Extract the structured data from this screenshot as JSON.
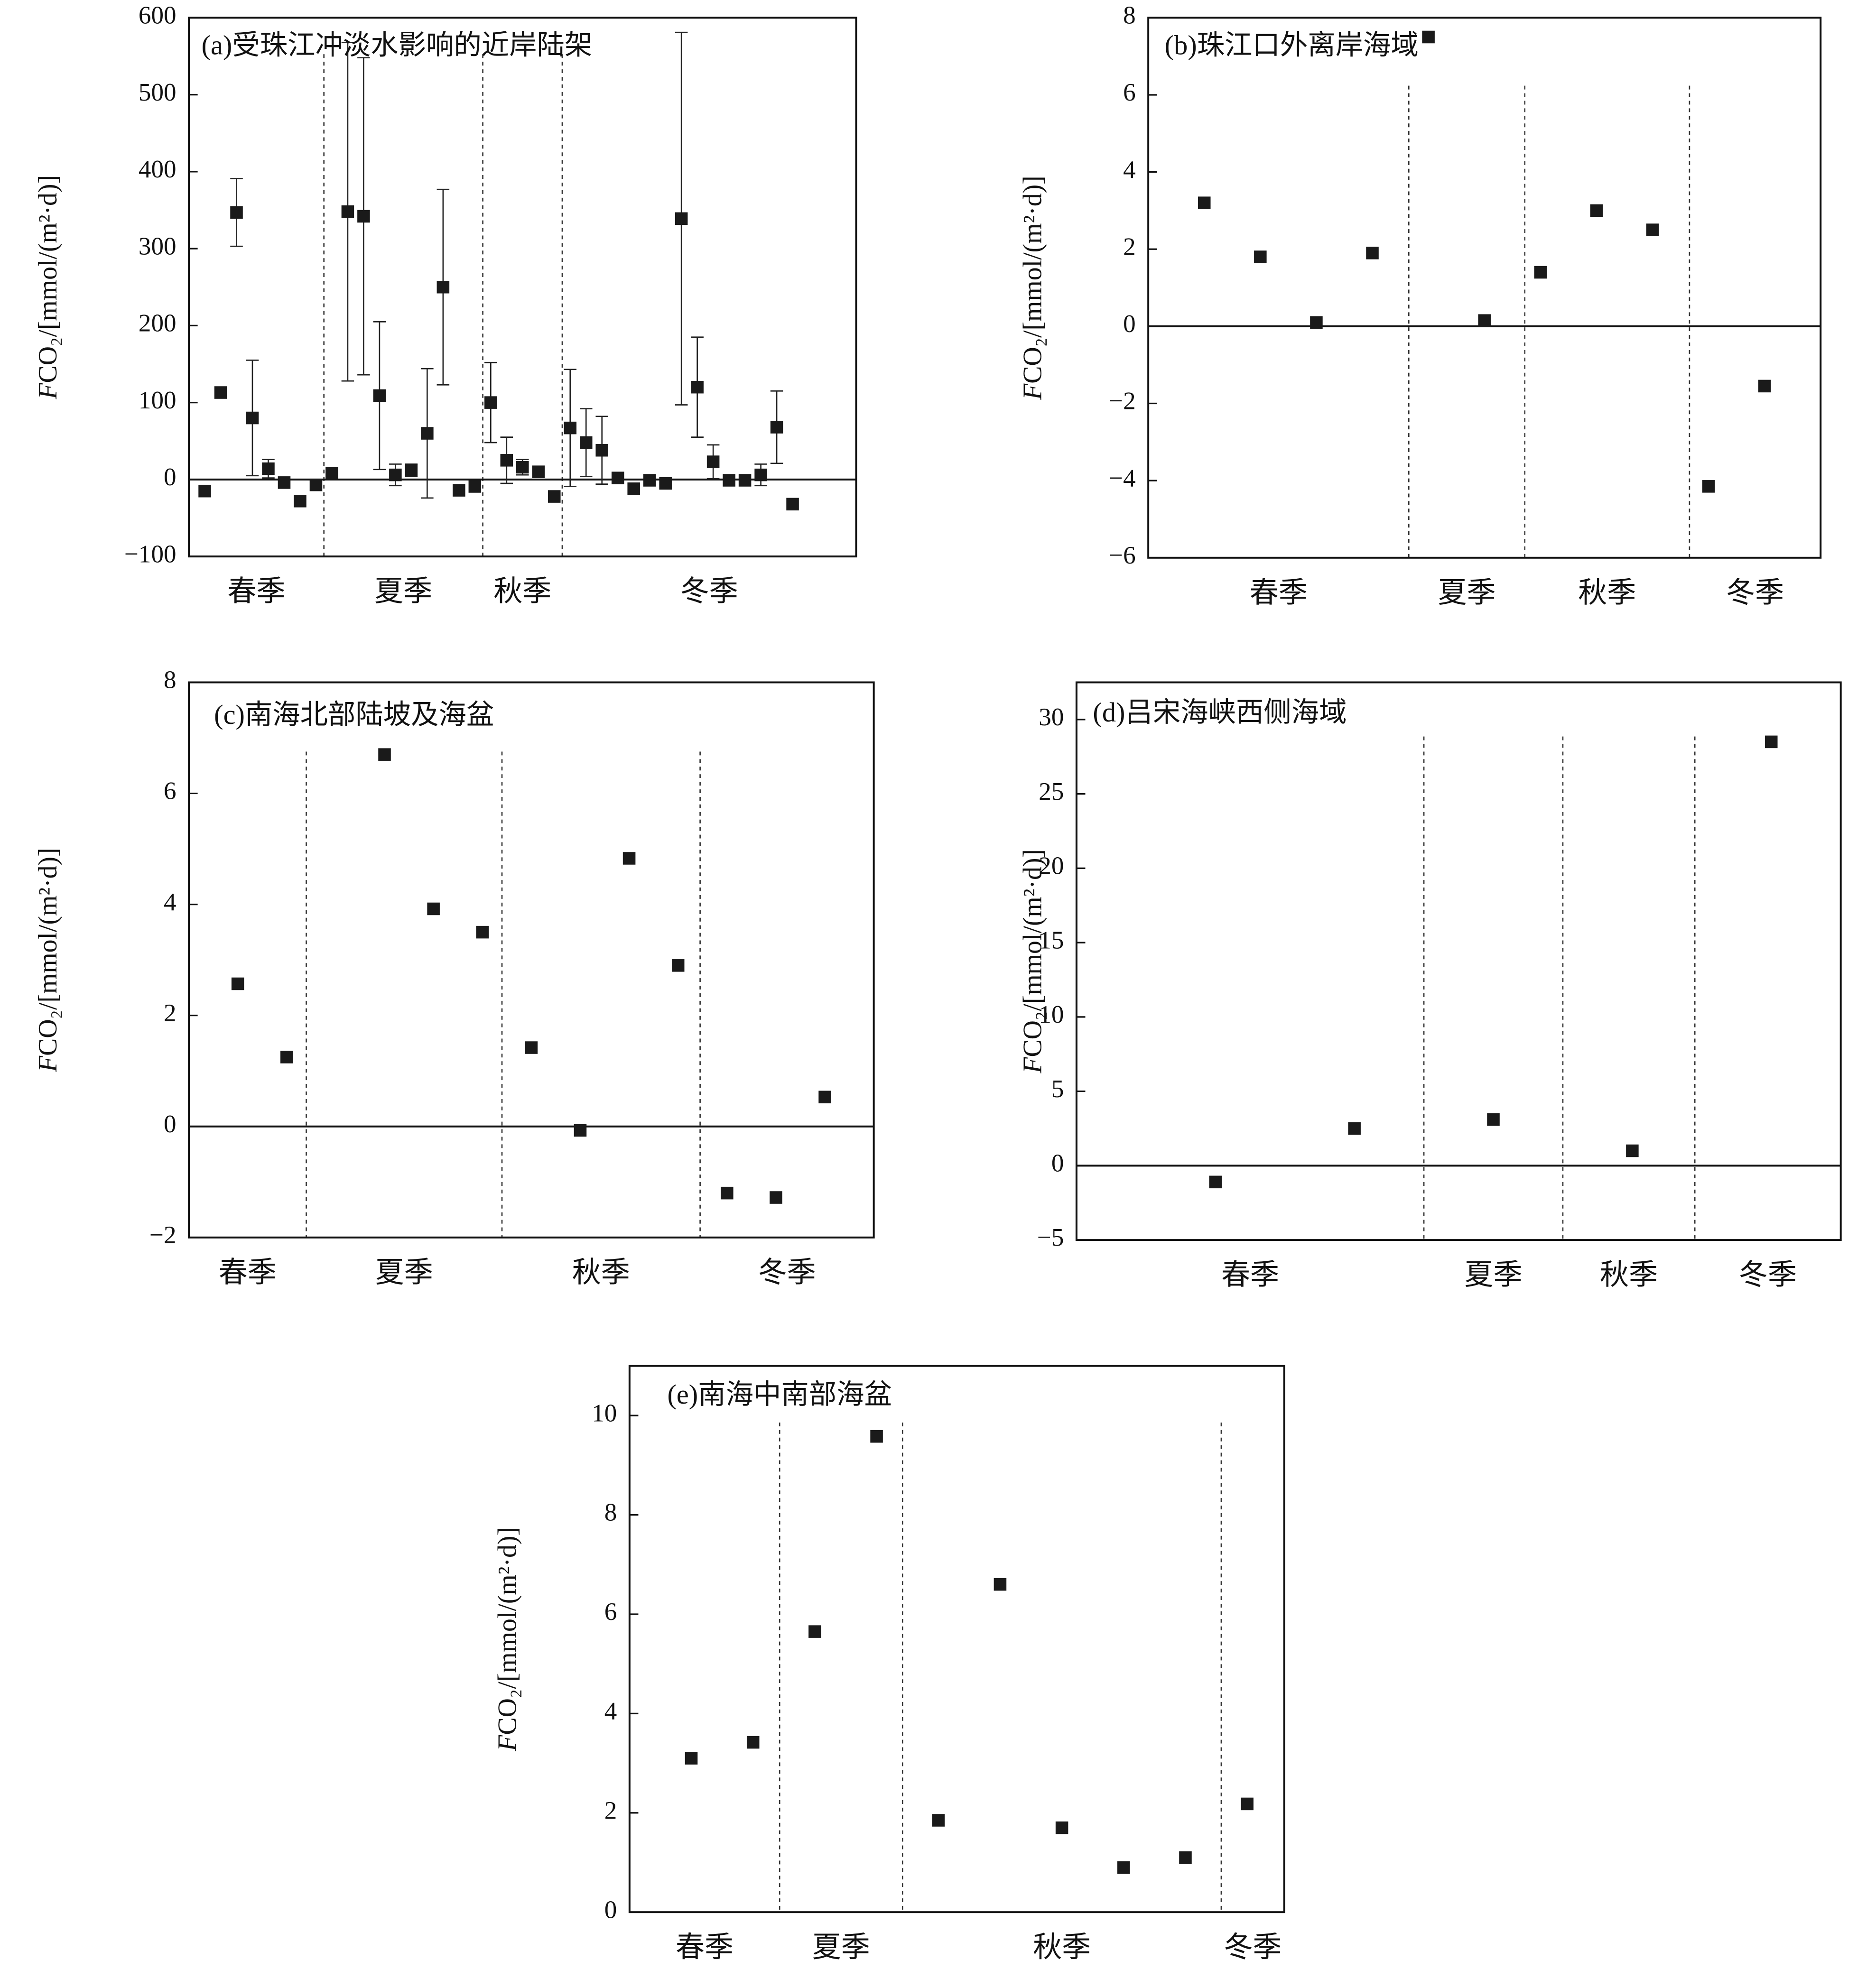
{
  "chart_data": [
    {
      "type": "scatter",
      "title": "(a)受珠江冲淡水影响的近岸陆架",
      "ylabel": {
        "italic": "F",
        "rest": "CO₂/[mmol/(m²·d)]"
      },
      "categories": [
        "春季",
        "夏季",
        "秋季",
        "冬季"
      ],
      "dividers": [
        7.5,
        17.5,
        22.5
      ],
      "x": [
        0,
        1,
        2,
        3,
        4,
        5,
        6,
        7,
        8,
        9,
        10,
        11,
        12,
        13,
        14,
        15,
        16,
        17,
        18,
        19,
        20,
        21,
        22,
        23,
        24,
        25,
        26,
        27,
        28,
        29,
        30,
        31,
        32,
        33,
        34,
        35,
        36,
        37
      ],
      "values": [
        -15,
        113,
        347,
        80,
        14,
        -4,
        -28,
        -7,
        8,
        348,
        342,
        109,
        6,
        12,
        60,
        250,
        -14,
        -9,
        100,
        25,
        16,
        10,
        -22,
        67,
        48,
        38,
        2,
        -12,
        -1,
        -5,
        339,
        120,
        23,
        -1,
        -1,
        6,
        68,
        -32
      ],
      "errors": [
        null,
        null,
        44,
        75,
        12,
        null,
        null,
        null,
        null,
        220,
        206,
        96,
        14,
        8,
        84,
        127,
        null,
        null,
        52,
        30,
        10,
        null,
        null,
        76,
        44,
        44,
        null,
        null,
        null,
        null,
        242,
        65,
        22,
        null,
        null,
        14,
        47,
        null
      ],
      "color": "#1a1a1a",
      "zero_line": true,
      "xlim": [
        -1,
        41
      ],
      "ylim": [
        -100,
        600
      ],
      "yticks": [
        {
          "value": -100,
          "label": "−100"
        },
        0,
        100,
        200,
        300,
        400,
        500,
        600
      ]
    },
    {
      "type": "scatter",
      "title": "(b)珠江口外离岸海域",
      "ylabel": {
        "italic": "F",
        "rest": "CO₂/[mmol/(m²·d)]"
      },
      "categories": [
        "春季",
        "夏季",
        "秋季",
        "冬季"
      ],
      "dividers": [
        3.65,
        5.72,
        8.66
      ],
      "x": [
        0,
        1,
        2,
        3,
        4,
        5,
        6,
        7,
        8,
        9,
        10
      ],
      "values": [
        3.2,
        1.8,
        0.1,
        1.9,
        7.5,
        0.15,
        1.4,
        3.0,
        2.5,
        -4.15,
        -1.55
      ],
      "color": "#1a1a1a",
      "zero_line": true,
      "xlim": [
        -1,
        11
      ],
      "ylim": [
        -6,
        8
      ],
      "yticks": [
        {
          "value": -6,
          "label": "−6"
        },
        {
          "value": -4,
          "label": "−4"
        },
        {
          "value": -2,
          "label": "−2"
        },
        0,
        2,
        4,
        6,
        8
      ]
    },
    {
      "type": "scatter",
      "title": "(c)南海北部陆坡及海盆",
      "ylabel": {
        "italic": "F",
        "rest": "CO₂/[mmol/(m²·d)]"
      },
      "categories": [
        "春季",
        "夏季",
        "秋季",
        "冬季"
      ],
      "dividers": [
        2.4,
        6.4,
        10.45
      ],
      "x": [
        1,
        2,
        4,
        5,
        6,
        7,
        8,
        9,
        10,
        11,
        12,
        13
      ],
      "values": [
        2.57,
        1.25,
        6.7,
        3.92,
        3.5,
        1.42,
        -0.07,
        4.83,
        2.9,
        -1.2,
        -1.28,
        0.53
      ],
      "color": "#1a1a1a",
      "zero_line": true,
      "xlim": [
        0,
        14
      ],
      "ylim": [
        -2,
        8
      ],
      "yticks": [
        {
          "value": -2,
          "label": "−2"
        },
        0,
        2,
        4,
        6,
        8
      ]
    },
    {
      "type": "scatter",
      "title": "(d)吕宋海峡西侧海域",
      "ylabel": {
        "italic": "F",
        "rest": "CO₂/[mmol/(m²·d)]"
      },
      "categories": [
        "春季",
        "夏季",
        "秋季",
        "冬季"
      ],
      "dividers": [
        2.5,
        3.5,
        4.45
      ],
      "x": [
        1,
        2,
        3,
        4,
        5
      ],
      "values": [
        -1.1,
        2.5,
        3.1,
        1.0,
        28.5
      ],
      "color": "#1a1a1a",
      "zero_line": true,
      "xlim": [
        0,
        5.5
      ],
      "ylim": [
        -5,
        32.5
      ],
      "yticks": [
        {
          "value": -5,
          "label": "−5"
        },
        0,
        5,
        10,
        15,
        20,
        25,
        30
      ]
    },
    {
      "type": "scatter",
      "title": "(e)南海中南部海盆",
      "ylabel": {
        "italic": "F",
        "rest": "CO₂/[mmol/(m²·d)]"
      },
      "categories": [
        "春季",
        "夏季",
        "秋季",
        "冬季"
      ],
      "dividers": [
        2.43,
        4.42,
        9.58
      ],
      "x": [
        1,
        2,
        3,
        4,
        5,
        6,
        7,
        8,
        9,
        10
      ],
      "values": [
        3.1,
        3.42,
        5.65,
        9.58,
        1.85,
        6.6,
        1.7,
        0.9,
        1.1,
        2.18
      ],
      "color": "#1a1a1a",
      "zero_line": false,
      "xlim": [
        0,
        10.6
      ],
      "ylim": [
        0,
        11
      ],
      "yticks": [
        0,
        2,
        4,
        6,
        8,
        10
      ]
    }
  ]
}
